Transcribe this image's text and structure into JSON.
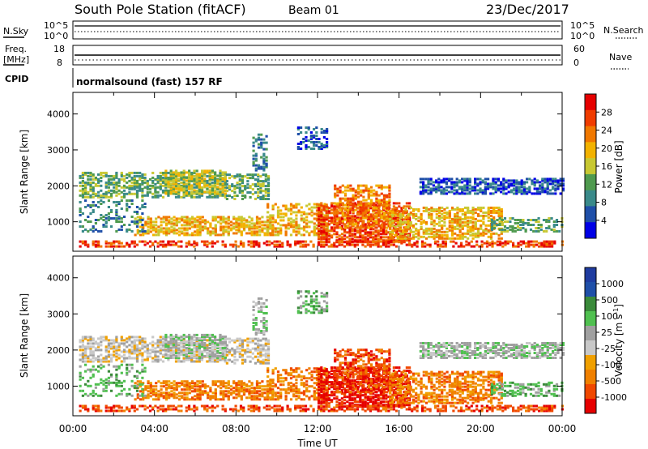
{
  "header": {
    "title": "South Pole Station (fitACF)",
    "beam": "Beam 01",
    "date": "23/Dec/2017"
  },
  "nsky_panel": {
    "left_label": "N.Sky",
    "left_ticks": [
      "10^5",
      "10^0"
    ],
    "right_ticks": [
      "10^5",
      "10^0"
    ],
    "right_label": "N.Search"
  },
  "freq_panel": {
    "left_label_1": "Freq.",
    "left_label_2": "[MHz]",
    "left_ticks": [
      "18",
      "8"
    ],
    "right_ticks": [
      "60",
      "0"
    ],
    "right_label": "Nave"
  },
  "cpid": {
    "label": "CPID",
    "text": "normalsound (fast) 157 RF"
  },
  "colors": {
    "power_scale": [
      "#0000e6",
      "#1f4fa8",
      "#3a8a8a",
      "#4f9a4f",
      "#c8c832",
      "#f2b200",
      "#f07800",
      "#f03c00",
      "#e60000"
    ],
    "velocity_scale": [
      "#e60000",
      "#f04800",
      "#f08000",
      "#f0a000",
      "#c8c8c8",
      "#a0a0a0",
      "#50c050",
      "#3a8a3a",
      "#1f4fa8",
      "#1f3ca0"
    ]
  },
  "chart_data": [
    {
      "type": "heatmap",
      "name_hint": "power",
      "xlabel": "",
      "ylabel": "Slant Range [km]",
      "x_ticks": [
        "00:00",
        "04:00",
        "08:00",
        "12:00",
        "16:00",
        "20:00",
        "00:00"
      ],
      "y_ticks": [
        "1000",
        "2000",
        "3000",
        "4000"
      ],
      "ylim": [
        180,
        4600
      ],
      "xlim_hours": [
        0,
        24
      ],
      "colorbar_label": "Power [dB]",
      "colorbar_ticks": [
        "4",
        "8",
        "12",
        "16",
        "20",
        "24",
        "28"
      ],
      "colorbar_range": [
        0,
        32
      ]
    },
    {
      "type": "heatmap",
      "name_hint": "velocity",
      "xlabel": "Time UT",
      "ylabel": "Slant Range [km]",
      "x_ticks": [
        "00:00",
        "04:00",
        "08:00",
        "12:00",
        "16:00",
        "20:00",
        "00:00"
      ],
      "y_ticks": [
        "1000",
        "2000",
        "3000",
        "4000"
      ],
      "ylim": [
        180,
        4600
      ],
      "xlim_hours": [
        0,
        24
      ],
      "colorbar_label": "Velocity [m s",
      "colorbar_label_sup": "-1",
      "colorbar_label_close": "]",
      "colorbar_ticks": [
        "1000",
        "500",
        "100",
        "25",
        "-25",
        "-100",
        "-500",
        "-1000"
      ],
      "colorbar_range": [
        -1250,
        1250
      ]
    }
  ]
}
